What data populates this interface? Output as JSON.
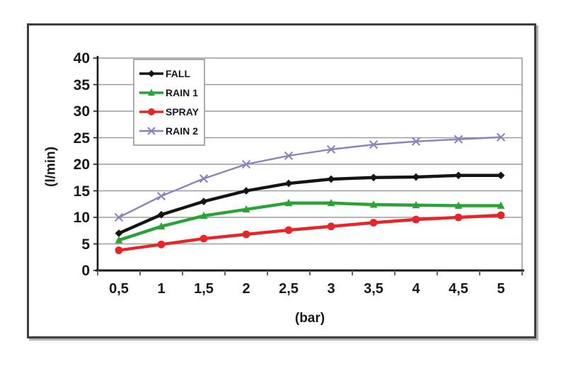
{
  "chart_data": {
    "type": "line",
    "title": "",
    "xlabel": "(bar)",
    "ylabel": "(l/min)",
    "x_tick_labels": [
      "0,5",
      "1",
      "1,5",
      "2",
      "2,5",
      "3",
      "3,5",
      "4",
      "4,5",
      "5"
    ],
    "x_values": [
      0.5,
      1,
      1.5,
      2,
      2.5,
      3,
      3.5,
      4,
      4.5,
      5
    ],
    "y_ticks": [
      0,
      5,
      10,
      15,
      20,
      25,
      30,
      35,
      40
    ],
    "ylim": [
      0,
      40
    ],
    "grid": "horizontal",
    "legend_position": "top-left-inside",
    "series": [
      {
        "name": "FALL",
        "color": "#141414",
        "marker": "diamond",
        "line_width": 4.4,
        "values": [
          7.0,
          10.5,
          13.0,
          15.0,
          16.4,
          17.2,
          17.5,
          17.6,
          17.9,
          17.9
        ]
      },
      {
        "name": "RAIN 1",
        "color": "#2aa335",
        "marker": "triangle",
        "line_width": 4.4,
        "values": [
          5.7,
          8.3,
          10.3,
          11.5,
          12.7,
          12.7,
          12.4,
          12.3,
          12.2,
          12.2
        ]
      },
      {
        "name": "SPRAY",
        "color": "#e52528",
        "marker": "circle",
        "line_width": 4.4,
        "values": [
          3.8,
          4.9,
          6.0,
          6.8,
          7.6,
          8.3,
          9.0,
          9.6,
          10.0,
          10.4
        ]
      },
      {
        "name": "RAIN 2",
        "color": "#9080bf",
        "marker": "x",
        "line_width": 2.4,
        "values": [
          10.0,
          14.0,
          17.3,
          20.0,
          21.6,
          22.8,
          23.7,
          24.3,
          24.7,
          25.1
        ]
      }
    ],
    "colors": {
      "grid": "#9c9c9c",
      "axis": "#1a1a1a",
      "plot_right_border": "#9c9c9c",
      "background": "#ffffff"
    }
  }
}
